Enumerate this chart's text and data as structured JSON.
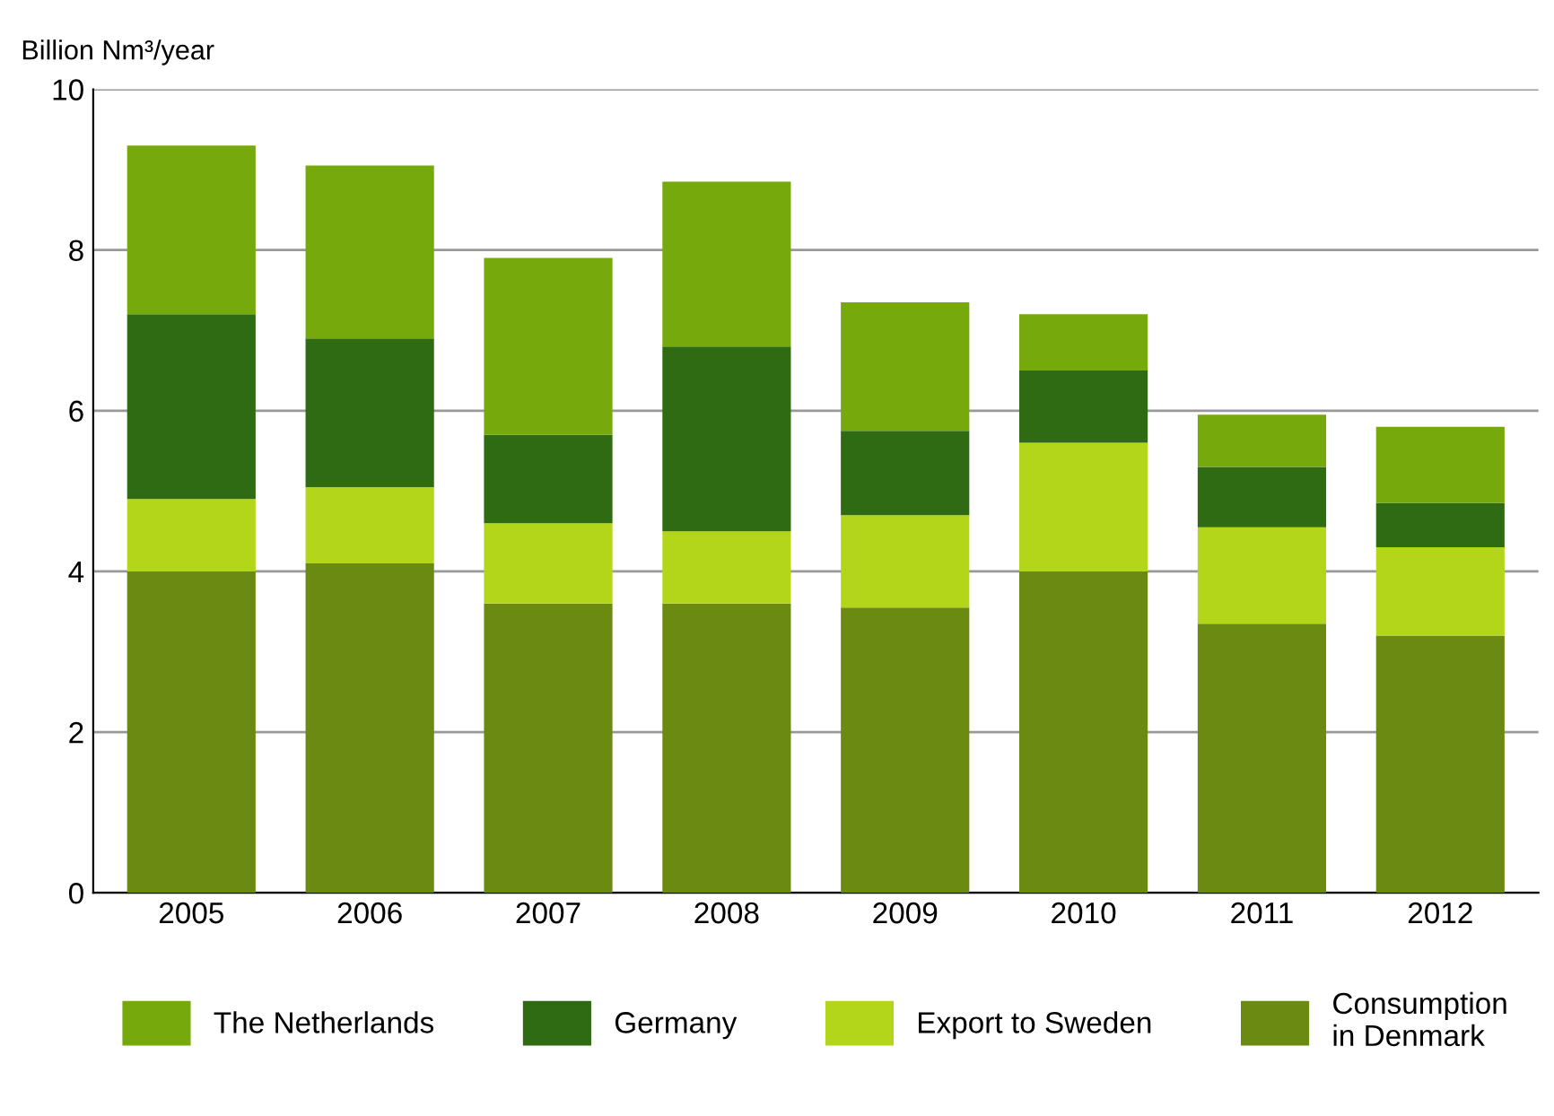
{
  "chart_data": {
    "type": "bar",
    "stacked": true,
    "ylabel": "Billion Nm³/year",
    "categories": [
      "2005",
      "2006",
      "2007",
      "2008",
      "2009",
      "2010",
      "2011",
      "2012"
    ],
    "series": [
      {
        "name": "Consumption\nin Denmark",
        "color": "#6b8a12",
        "values": [
          4.0,
          4.1,
          3.6,
          3.6,
          3.55,
          4.0,
          3.35,
          3.2
        ]
      },
      {
        "name": "Export to Sweden",
        "color": "#b4d61a",
        "values": [
          0.9,
          0.95,
          1.0,
          0.9,
          1.15,
          1.6,
          1.2,
          1.1
        ]
      },
      {
        "name": "Germany",
        "color": "#2f6b12",
        "values": [
          2.3,
          1.85,
          1.1,
          2.3,
          1.05,
          0.9,
          0.75,
          0.55
        ]
      },
      {
        "name": "The Netherlands",
        "color": "#76a90c",
        "values": [
          2.1,
          2.15,
          2.2,
          2.05,
          1.6,
          0.7,
          0.65,
          0.95
        ]
      }
    ],
    "ylim": [
      0,
      10
    ],
    "yticks": [
      0,
      2,
      4,
      6,
      8,
      10
    ],
    "grid": "y",
    "legend": "bottom"
  }
}
